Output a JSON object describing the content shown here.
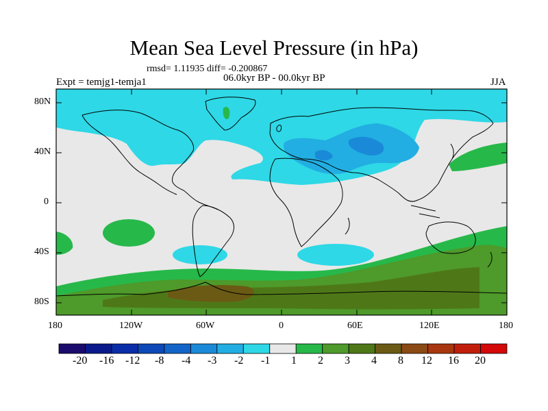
{
  "title": "Mean Sea Level Pressure (in hPa)",
  "stats": "rmsd= 1.11935 diff= -0.200867",
  "period": "06.0kyr BP - 00.0kyr BP",
  "expt": "Expt = temjg1-temja1",
  "season": "JJA",
  "y_axis_labels": [
    "80N",
    "40N",
    "0",
    "40S",
    "80S"
  ],
  "x_axis_labels": [
    "180",
    "120W",
    "60W",
    "0",
    "60E",
    "120E",
    "180"
  ],
  "colorbar": {
    "colors": [
      "#1a0a6b",
      "#0a1a8c",
      "#0a2ca8",
      "#0d48b8",
      "#1264c8",
      "#1a8ad8",
      "#22aee2",
      "#2ed8e6",
      "#e8e8e8",
      "#27b84a",
      "#4e9a2a",
      "#4e7818",
      "#6b5a14",
      "#8a4a14",
      "#a8360e",
      "#c01e0a",
      "#d40808"
    ],
    "labels": [
      "-20",
      "-16",
      "-12",
      "-8",
      "-4",
      "-3",
      "-2",
      "-1",
      "1",
      "2",
      "3",
      "4",
      "8",
      "12",
      "16",
      "20"
    ]
  },
  "fill_colors": {
    "ocean_neutral": "#e8e8e8",
    "neg_1_2": "#2ed8e6",
    "neg_2_3": "#22aee2",
    "neg_3_4": "#1a8ad8",
    "pos_1_2": "#27b84a",
    "pos_2_3": "#4e9a2a",
    "pos_3_4": "#4e7818",
    "pos_4_8": "#6b5a14"
  }
}
